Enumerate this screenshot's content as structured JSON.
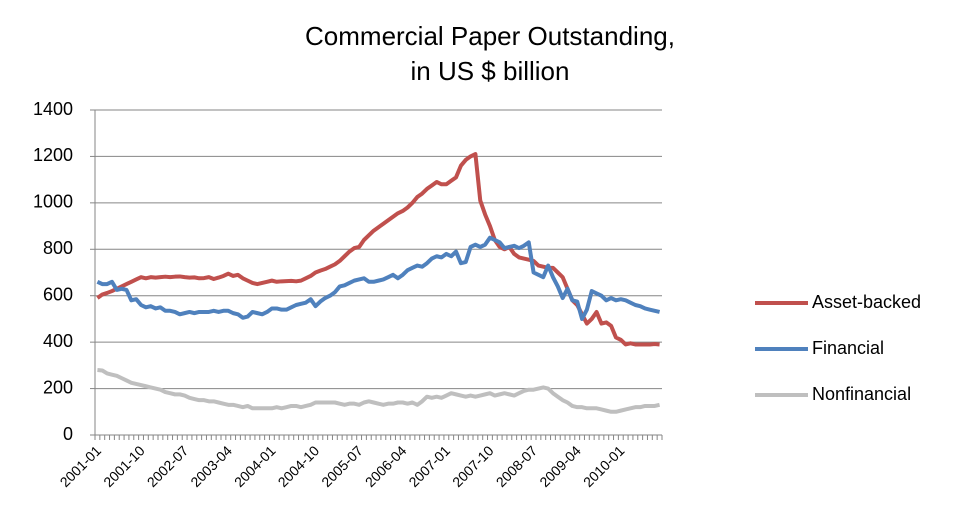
{
  "chart_data": {
    "type": "line",
    "title": [
      "Commercial Paper Outstanding,",
      "in US $ billion"
    ],
    "categories": [
      "2001-01",
      null,
      null,
      null,
      null,
      null,
      null,
      null,
      null,
      "2001-10",
      null,
      null,
      null,
      null,
      null,
      null,
      null,
      null,
      "2002-07",
      null,
      null,
      null,
      null,
      null,
      null,
      null,
      null,
      "2003-04",
      null,
      null,
      null,
      null,
      null,
      null,
      null,
      null,
      "2004-01",
      null,
      null,
      null,
      null,
      null,
      null,
      null,
      null,
      "2004-10",
      null,
      null,
      null,
      null,
      null,
      null,
      null,
      null,
      "2005-07",
      null,
      null,
      null,
      null,
      null,
      null,
      null,
      null,
      "2006-04",
      null,
      null,
      null,
      null,
      null,
      null,
      null,
      null,
      "2007-01",
      null,
      null,
      null,
      null,
      null,
      null,
      null,
      null,
      "2007-10",
      null,
      null,
      null,
      null,
      null,
      null,
      null,
      null,
      "2008-07",
      null,
      null,
      null,
      null,
      null,
      null,
      null,
      null,
      "2009-04",
      null,
      null,
      null,
      null,
      null,
      null,
      null,
      null,
      "2010-01",
      null,
      null,
      null,
      null,
      null,
      null,
      null,
      null
    ],
    "series": [
      {
        "name": "Asset-backed",
        "color": "#c0504d",
        "values": [
          590,
          605,
          612,
          620,
          630,
          640,
          650,
          660,
          670,
          680,
          675,
          680,
          678,
          680,
          682,
          680,
          682,
          683,
          680,
          678,
          679,
          675,
          676,
          680,
          672,
          678,
          685,
          695,
          685,
          690,
          675,
          665,
          655,
          650,
          655,
          660,
          665,
          660,
          662,
          663,
          664,
          662,
          665,
          675,
          685,
          700,
          708,
          715,
          725,
          735,
          750,
          770,
          790,
          805,
          810,
          840,
          860,
          880,
          895,
          910,
          925,
          940,
          955,
          965,
          980,
          1000,
          1025,
          1040,
          1060,
          1075,
          1090,
          1080,
          1080,
          1095,
          1110,
          1160,
          1185,
          1200,
          1210,
          1010,
          950,
          900,
          840,
          810,
          800,
          810,
          780,
          765,
          760,
          755,
          750,
          730,
          725,
          720,
          720,
          700,
          680,
          630,
          580,
          560,
          520,
          480,
          500,
          530,
          480,
          485,
          470,
          420,
          410,
          390,
          395,
          390,
          390,
          390,
          390,
          392,
          390
        ]
      },
      {
        "name": "Financial",
        "color": "#4f81bd",
        "values": [
          660,
          650,
          650,
          660,
          625,
          630,
          625,
          580,
          585,
          560,
          550,
          555,
          545,
          550,
          535,
          535,
          530,
          520,
          525,
          530,
          525,
          530,
          530,
          530,
          535,
          530,
          535,
          535,
          525,
          520,
          505,
          510,
          530,
          525,
          520,
          530,
          545,
          545,
          540,
          540,
          550,
          560,
          565,
          570,
          585,
          555,
          575,
          590,
          600,
          615,
          640,
          645,
          655,
          665,
          670,
          675,
          660,
          660,
          665,
          670,
          680,
          690,
          675,
          690,
          710,
          720,
          730,
          725,
          740,
          760,
          770,
          765,
          780,
          770,
          790,
          740,
          745,
          810,
          820,
          810,
          820,
          850,
          840,
          830,
          805,
          810,
          815,
          805,
          815,
          830,
          700,
          690,
          680,
          730,
          680,
          640,
          590,
          630,
          580,
          575,
          500,
          540,
          620,
          610,
          600,
          580,
          590,
          580,
          585,
          580,
          570,
          560,
          555,
          545,
          540,
          535,
          530
        ]
      },
      {
        "name": "Nonfinancial",
        "color": "#bfbfbf",
        "values": [
          280,
          278,
          265,
          260,
          255,
          245,
          235,
          225,
          220,
          215,
          210,
          205,
          200,
          195,
          185,
          180,
          175,
          175,
          170,
          160,
          155,
          150,
          150,
          145,
          145,
          140,
          135,
          130,
          130,
          125,
          120,
          125,
          115,
          115,
          115,
          115,
          115,
          120,
          115,
          120,
          125,
          125,
          120,
          125,
          130,
          140,
          140,
          140,
          140,
          140,
          135,
          130,
          135,
          135,
          130,
          140,
          145,
          140,
          135,
          130,
          135,
          135,
          140,
          140,
          135,
          140,
          130,
          145,
          165,
          160,
          165,
          160,
          170,
          180,
          175,
          170,
          165,
          170,
          165,
          170,
          175,
          180,
          170,
          175,
          180,
          175,
          170,
          180,
          190,
          195,
          195,
          200,
          205,
          200,
          180,
          165,
          150,
          140,
          125,
          120,
          120,
          115,
          115,
          115,
          110,
          105,
          100,
          100,
          105,
          110,
          115,
          120,
          120,
          125,
          125,
          125,
          130
        ]
      }
    ],
    "ylim": [
      0,
      1400
    ],
    "yticks": [
      0,
      200,
      400,
      600,
      800,
      1000,
      1200,
      1400
    ],
    "grid": true,
    "legend": "right"
  }
}
